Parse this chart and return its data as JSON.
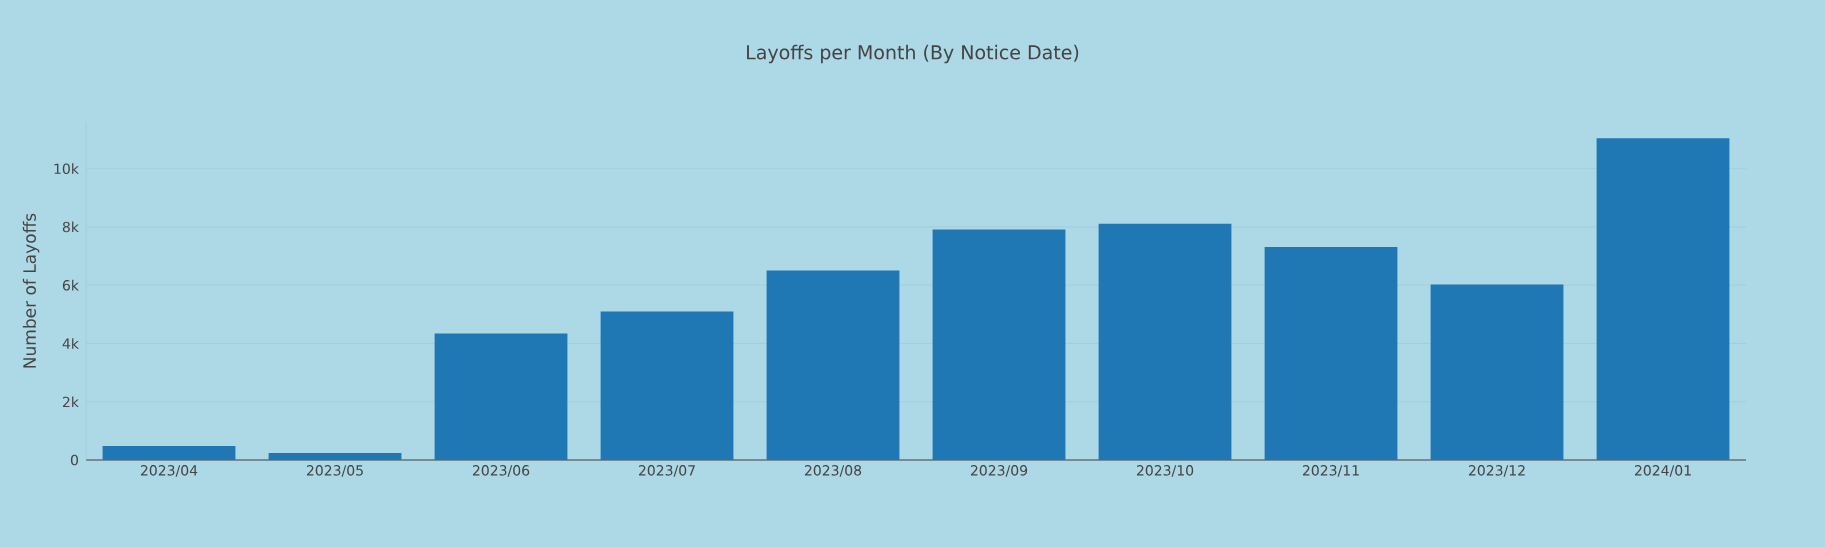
{
  "chart_data": {
    "type": "bar",
    "title": "Layoffs per Month (By Notice Date)",
    "ylabel": "Number of Layoffs",
    "categories": [
      "2023/04",
      "2023/05",
      "2023/06",
      "2023/07",
      "2023/08",
      "2023/09",
      "2023/10",
      "2023/11",
      "2023/12",
      "2024/01"
    ],
    "values": [
      480,
      240,
      4340,
      5100,
      6500,
      7910,
      8110,
      7310,
      6020,
      11040
    ],
    "color": "#1f77b4",
    "ylim": [
      0,
      11600
    ],
    "yticks": [
      0,
      {
        "value": 2000,
        "label": "2k"
      },
      {
        "value": 4000,
        "label": "4k"
      },
      {
        "value": 6000,
        "label": "6k"
      },
      {
        "value": 8000,
        "label": "8k"
      },
      {
        "value": 10000,
        "label": "10k"
      }
    ],
    "grid": "y"
  }
}
